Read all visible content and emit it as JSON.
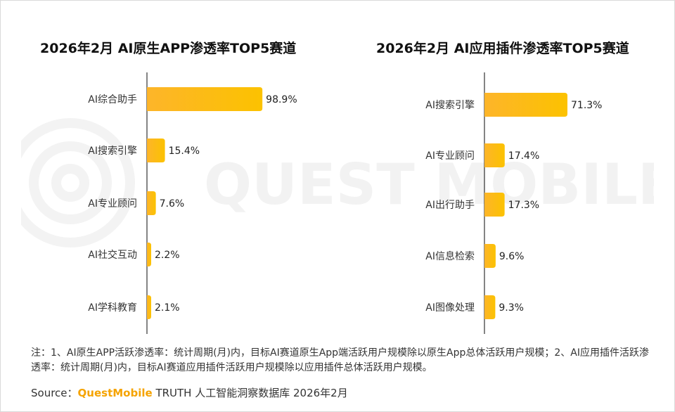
{
  "accent_color": "#fcc200",
  "watermark": {
    "text": "QUEST MOBILE"
  },
  "charts": [
    {
      "title": "2026年2月 AI原生APP渗透率TOP5赛道",
      "chart_data": {
        "type": "bar",
        "orientation": "horizontal",
        "categories": [
          "AI综合助手",
          "AI搜索引擎",
          "AI专业顾问",
          "AI社交互动",
          "AI学科教育"
        ],
        "values": [
          98.9,
          15.4,
          7.6,
          2.2,
          2.1
        ],
        "value_labels": [
          "98.9%",
          "15.4%",
          "7.6%",
          "2.2%",
          "2.1%"
        ],
        "unit": "%",
        "xlim": [
          0,
          100
        ]
      }
    },
    {
      "title": "2026年2月 AI应用插件渗透率TOP5赛道",
      "chart_data": {
        "type": "bar",
        "orientation": "horizontal",
        "categories": [
          "AI搜索引擎",
          "AI专业顾问",
          "AI出行助手",
          "AI信息检索",
          "AI图像处理"
        ],
        "values": [
          71.3,
          17.4,
          17.3,
          9.6,
          9.3
        ],
        "value_labels": [
          "71.3%",
          "17.4%",
          "17.3%",
          "9.6%",
          "9.3%"
        ],
        "unit": "%",
        "xlim": [
          0,
          71.3
        ]
      }
    }
  ],
  "footer": {
    "note": "注：1、AI原生APP活跃渗透率：统计周期(月)内，目标AI赛道原生App端活跃用户规模除以原生App总体活跃用户规模；2、AI应用插件活跃渗透率：统计周期(月)内，目标AI赛道应用插件活跃用户规模除以应用插件总体活跃用户规模。",
    "source_prefix": "Source：",
    "source_brand": "QuestMobile",
    "source_suffix": " TRUTH 人工智能洞察数据库 2026年2月"
  }
}
